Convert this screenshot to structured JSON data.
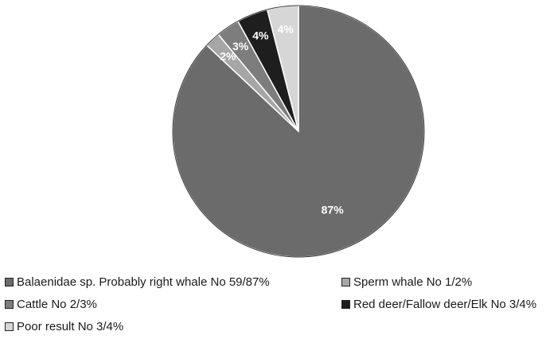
{
  "chart_data": {
    "type": "pie",
    "slices": [
      {
        "label": "Balaenidae sp. Probably right whale No 59/87%",
        "value": 87,
        "display": "87%",
        "color": "#6b6b6b"
      },
      {
        "label": "Sperm whale No 1/2%",
        "value": 2,
        "display": "2%",
        "color": "#a6a6a6"
      },
      {
        "label": "Cattle No 2/3%",
        "value": 3,
        "display": "3%",
        "color": "#7d7d7d"
      },
      {
        "label": "Red deer/Fallow deer/Elk No 3/4%",
        "value": 4,
        "display": "4%",
        "color": "#1e1e1e"
      },
      {
        "label": "Poor result No 3/4%",
        "value": 4,
        "display": "4%",
        "color": "#d6d6d6"
      }
    ],
    "slice_order_clockwise_from_top": [
      "Balaenidae sp. Probably right whale No 59/87%",
      "Sperm whale No 1/2%",
      "Cattle No 2/3%",
      "Red deer/Fallow deer/Elk No 3/4%",
      "Poor result No 3/4%"
    ],
    "legend_placement": "bottom"
  },
  "legend": [
    {
      "label": "Balaenidae sp. Probably right whale No 59/87%",
      "color": "#6b6b6b"
    },
    {
      "label": "Sperm whale No 1/2%",
      "color": "#a6a6a6"
    },
    {
      "label": "Cattle No 2/3%",
      "color": "#7d7d7d"
    },
    {
      "label": "Red deer/Fallow deer/Elk No 3/4%",
      "color": "#1e1e1e"
    },
    {
      "label": "Poor result No 3/4%",
      "color": "#d6d6d6"
    }
  ]
}
